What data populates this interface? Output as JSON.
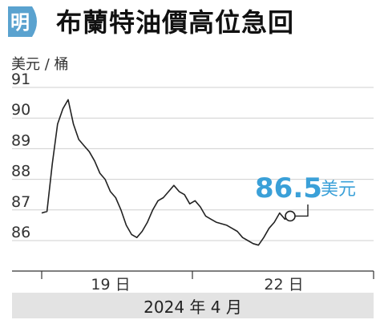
{
  "header": {
    "badge_text": "明",
    "title": "布蘭特油價高位急回"
  },
  "colors": {
    "badge": "#5aa2cf",
    "accent": "#3aa0d8",
    "line": "#222222",
    "gridline": "#cfcfcf",
    "footer_bg": "#e3e3e3"
  },
  "chart_data": {
    "type": "line",
    "title": "布蘭特油價高位急回",
    "ylabel": "美元 / 桶",
    "xlabel": "2024 年 4 月",
    "ylim": [
      85.6,
      91.1
    ],
    "yticks": [
      "91",
      "90",
      "89",
      "88",
      "87",
      "86"
    ],
    "xticks": [
      "19 日",
      "22 日"
    ],
    "grid": "horizontal",
    "series": [
      {
        "values": [
          86.9,
          86.95,
          88.5,
          89.8,
          90.3,
          90.6,
          89.8,
          89.3,
          89.1,
          88.9,
          88.6,
          88.2,
          88.0,
          87.6,
          87.4,
          87.0,
          86.5,
          86.2,
          86.1,
          86.3,
          86.6,
          87.0,
          87.3,
          87.4,
          87.6,
          87.8,
          87.6,
          87.5,
          87.2,
          87.3,
          87.1,
          86.8,
          86.7,
          86.6,
          86.55,
          86.5,
          86.4,
          86.3,
          86.1,
          86.0,
          85.9,
          85.85,
          86.1,
          86.4,
          86.6,
          86.9,
          86.7,
          86.8
        ]
      }
    ],
    "annotation": {
      "value": "86.5",
      "unit": "美元"
    }
  },
  "footer": {
    "period": "2024 年 4 月"
  }
}
